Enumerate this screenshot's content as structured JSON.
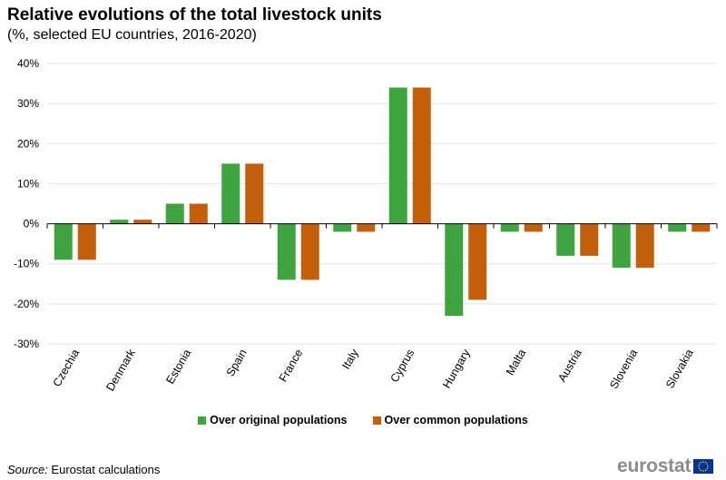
{
  "chart_data": {
    "type": "bar",
    "title": "Relative evolutions of the total livestock units",
    "subtitle": "(%, selected EU countries, 2016-2020)",
    "categories": [
      "Czechia",
      "Denmark",
      "Estonia",
      "Spain",
      "France",
      "Italy",
      "Cyprus",
      "Hungary",
      "Malta",
      "Austria",
      "Slovenia",
      "Slovakia"
    ],
    "series": [
      {
        "name": "Over original populations",
        "color": "#3fa33f",
        "values": [
          -9,
          1,
          5,
          15,
          -14,
          -2,
          34,
          -23,
          -2,
          -8,
          -11,
          -2
        ]
      },
      {
        "name": "Over common populations",
        "color": "#c45f0c",
        "values": [
          -9,
          1,
          5,
          15,
          -14,
          -2,
          34,
          -19,
          -2,
          -8,
          -11,
          -2
        ]
      }
    ],
    "yticks": [
      40,
      30,
      20,
      10,
      0,
      -10,
      -20,
      -30
    ],
    "ytick_labels": [
      "40%",
      "30%",
      "20%",
      "10%",
      "0%",
      "-10%",
      "-20%",
      "-30%"
    ],
    "ylim": [
      -30,
      40
    ],
    "xlabel": "",
    "ylabel": "",
    "grid": true,
    "legend_position": "bottom"
  },
  "source": {
    "label": "Source:",
    "text": " Eurostat calculations"
  },
  "logo": {
    "text": "eurostat",
    "flag_colors": {
      "blue": "#003399",
      "star": "#ffcc00"
    }
  }
}
